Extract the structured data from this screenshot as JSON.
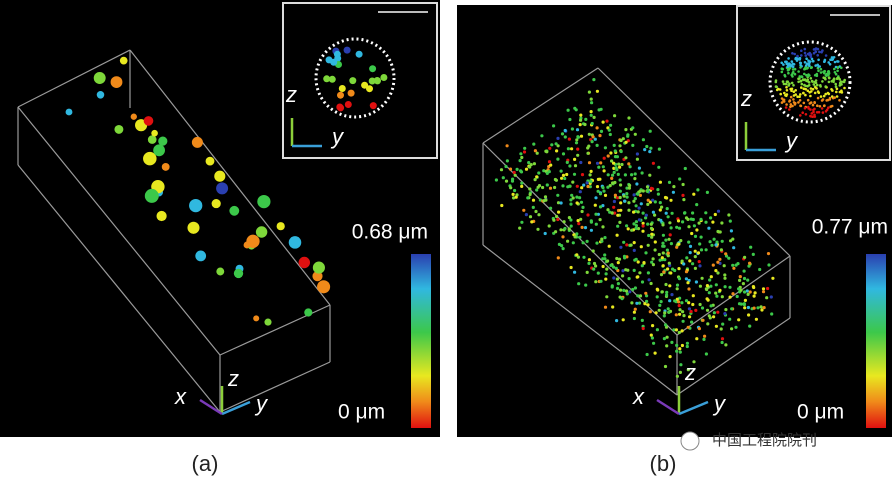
{
  "panels": [
    {
      "label": "(a)",
      "colorbar": {
        "max_label": "0.68 μm",
        "min_label": "0 μm"
      },
      "axes": {
        "x": "x",
        "y": "y",
        "z": "z"
      },
      "inset_axes": {
        "y": "y",
        "z": "z"
      }
    },
    {
      "label": "(b)",
      "colorbar": {
        "max_label": "0.77 μm",
        "min_label": "0 μm"
      },
      "axes": {
        "x": "x",
        "y": "y",
        "z": "z"
      },
      "inset_axes": {
        "y": "y",
        "z": "z"
      }
    }
  ],
  "watermark": "中国工程院院刊"
}
